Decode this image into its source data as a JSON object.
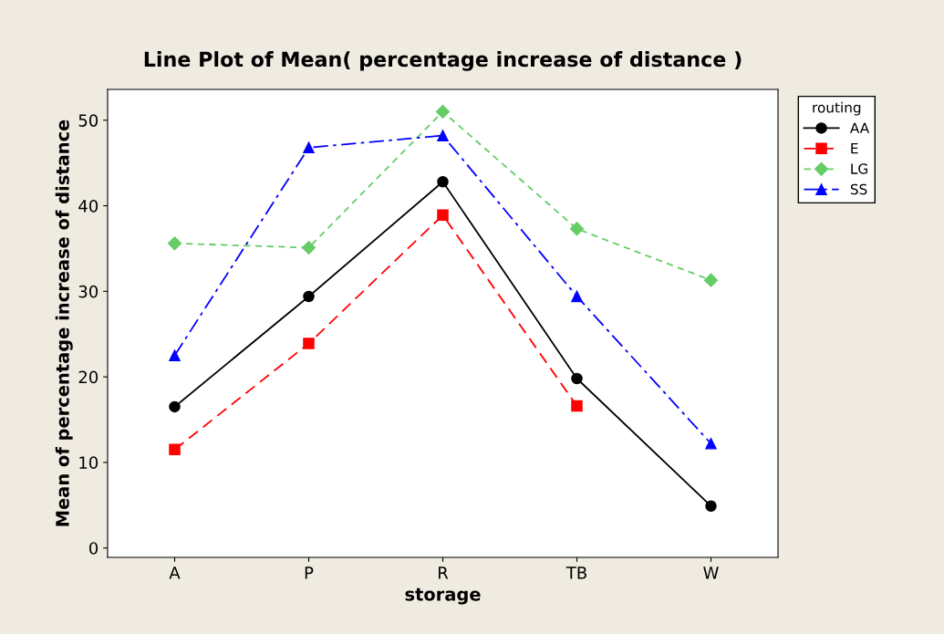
{
  "chart_data": {
    "type": "line",
    "title": "Line Plot of Mean( percentage increase of distance )",
    "xlabel": "storage",
    "ylabel": "Mean of percentage increase of distance",
    "categories": [
      "A",
      "P",
      "R",
      "TB",
      "W"
    ],
    "series": [
      {
        "name": "AA",
        "color": "#000000",
        "marker": "circle",
        "line_style": "solid",
        "values": [
          16.5,
          29.4,
          42.8,
          19.8,
          4.9
        ]
      },
      {
        "name": "E",
        "color": "#ff0000",
        "marker": "square",
        "line_style": "dashed",
        "values": [
          11.5,
          23.9,
          38.9,
          16.6,
          null
        ]
      },
      {
        "name": "LG",
        "color": "#66cc66",
        "marker": "diamond",
        "line_style": "dotted",
        "values": [
          35.6,
          35.1,
          51.0,
          37.3,
          31.3
        ]
      },
      {
        "name": "SS",
        "color": "#0000ff",
        "marker": "triangle",
        "line_style": "dashdot",
        "values": [
          22.5,
          46.8,
          48.2,
          29.4,
          12.2
        ]
      }
    ],
    "legend_title": "routing",
    "legend": "right",
    "grid": false,
    "ylim": [
      -1.1,
      53.6
    ],
    "yticks": [
      0,
      10,
      20,
      30,
      40,
      50
    ]
  }
}
